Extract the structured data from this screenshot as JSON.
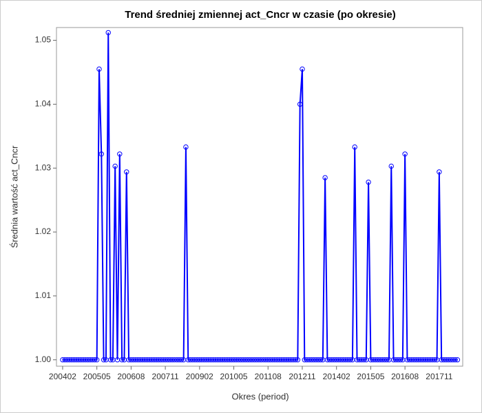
{
  "chart_data": {
    "type": "line",
    "title": "Trend średniej zmiennej act_Cncr w czasie (po okresie)",
    "x_label": "Okres (period)",
    "y_label": "Średnia wartość act_Cncr",
    "categories": [
      "200402",
      null,
      null,
      null,
      null,
      null,
      null,
      null,
      null,
      null,
      null,
      null,
      null,
      null,
      null,
      "200505",
      null,
      null,
      null,
      null,
      null,
      null,
      null,
      null,
      null,
      null,
      null,
      null,
      null,
      null,
      "200608",
      null,
      null,
      null,
      null,
      null,
      null,
      null,
      null,
      null,
      null,
      null,
      null,
      null,
      null,
      "200711",
      null,
      null,
      null,
      null,
      null,
      null,
      null,
      null,
      null,
      null,
      null,
      null,
      null,
      null,
      "200902",
      null,
      null,
      null,
      null,
      null,
      null,
      null,
      null,
      null,
      null,
      null,
      null,
      null,
      null,
      "201005",
      null,
      null,
      null,
      null,
      null,
      null,
      null,
      null,
      null,
      null,
      null,
      null,
      null,
      null,
      "201108",
      null,
      null,
      null,
      null,
      null,
      null,
      null,
      null,
      null,
      null,
      null,
      null,
      null,
      null,
      "201211",
      null,
      null,
      null,
      null,
      null,
      null,
      null,
      null,
      null,
      null,
      null,
      null,
      null,
      null,
      "201402",
      null,
      null,
      null,
      null,
      null,
      null,
      null,
      null,
      null,
      null,
      null,
      null,
      null,
      null,
      "201505",
      null,
      null,
      null,
      null,
      null,
      null,
      null,
      null,
      null,
      null,
      null,
      null,
      null,
      null,
      "201608",
      null,
      null,
      null,
      null,
      null,
      null,
      null,
      null,
      null,
      null,
      null,
      null,
      null,
      null,
      "201711",
      null,
      null,
      null,
      null,
      null,
      null,
      null,
      null
    ],
    "series": [
      {
        "name": "act_Cncr",
        "color": "#0000ff",
        "values": [
          1,
          1,
          1,
          1,
          1,
          1,
          1,
          1,
          1,
          1,
          1,
          1,
          1,
          1,
          1,
          1,
          1.0455,
          1.0322,
          1,
          1,
          1.0512,
          1,
          1,
          1.0303,
          1,
          1.0322,
          1,
          1,
          1.0294,
          1,
          1,
          1,
          1,
          1,
          1,
          1,
          1,
          1,
          1,
          1,
          1,
          1,
          1,
          1,
          1,
          1,
          1,
          1,
          1,
          1,
          1,
          1,
          1,
          1,
          1.0333,
          1,
          1,
          1,
          1,
          1,
          1,
          1,
          1,
          1,
          1,
          1,
          1,
          1,
          1,
          1,
          1,
          1,
          1,
          1,
          1,
          1,
          1,
          1,
          1,
          1,
          1,
          1,
          1,
          1,
          1,
          1,
          1,
          1,
          1,
          1,
          1,
          1,
          1,
          1,
          1,
          1,
          1,
          1,
          1,
          1,
          1,
          1,
          1,
          1,
          1.04,
          1.0455,
          1,
          1,
          1,
          1,
          1,
          1,
          1,
          1,
          1,
          1.0285,
          1,
          1,
          1,
          1,
          1,
          1,
          1,
          1,
          1,
          1,
          1,
          1,
          1.0333,
          1,
          1,
          1,
          1,
          1,
          1.0278,
          1,
          1,
          1,
          1,
          1,
          1,
          1,
          1,
          1,
          1.0303,
          1,
          1,
          1,
          1,
          1,
          1.0322,
          1,
          1,
          1,
          1,
          1,
          1,
          1,
          1,
          1,
          1,
          1,
          1,
          1,
          1,
          1.0294,
          1,
          1,
          1,
          1,
          1,
          1,
          1,
          1
        ]
      }
    ],
    "ylim": [
      0.999,
      1.052
    ],
    "yticks": [
      {
        "value": 1,
        "label": "1.00"
      },
      1.01,
      1.02,
      1.03,
      1.04,
      1.05
    ]
  }
}
